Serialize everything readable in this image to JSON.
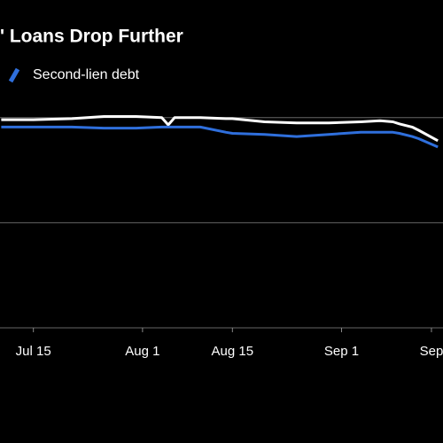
{
  "chart_data": {
    "type": "line",
    "title": "' Loans Drop Further",
    "x": [
      9,
      14,
      20,
      25,
      30,
      34,
      35,
      36,
      40,
      44,
      45,
      50,
      55,
      60,
      65,
      68,
      70,
      71,
      73,
      74,
      77
    ],
    "series": [
      {
        "color": "#ffffff",
        "values": [
          1.98,
          1.98,
          1.99,
          2.01,
          2.01,
          2.0,
          1.93,
          2.0,
          2.0,
          1.99,
          1.99,
          1.96,
          1.95,
          1.95,
          1.96,
          1.97,
          1.96,
          1.94,
          1.91,
          1.88,
          1.78
        ]
      },
      {
        "name": "Second-lien debt",
        "color": "#2f6fdc",
        "values": [
          1.91,
          1.91,
          1.91,
          1.9,
          1.9,
          1.91,
          1.91,
          1.91,
          1.91,
          1.86,
          1.85,
          1.84,
          1.82,
          1.84,
          1.86,
          1.86,
          1.86,
          1.85,
          1.82,
          1.8,
          1.72
        ]
      }
    ],
    "xlim": [
      8.8,
      77.8
    ],
    "xticks": [
      {
        "value": 14,
        "label": "Jul 15"
      },
      {
        "value": 31,
        "label": "Aug 1"
      },
      {
        "value": 45,
        "label": "Aug 15"
      },
      {
        "value": 62,
        "label": "Sep 1"
      },
      {
        "value": 76,
        "label": "Sep"
      }
    ],
    "ylim": [
      0,
      2.2
    ],
    "yticks": [
      0,
      1,
      2
    ],
    "ytick_labels": false,
    "grid": true
  }
}
